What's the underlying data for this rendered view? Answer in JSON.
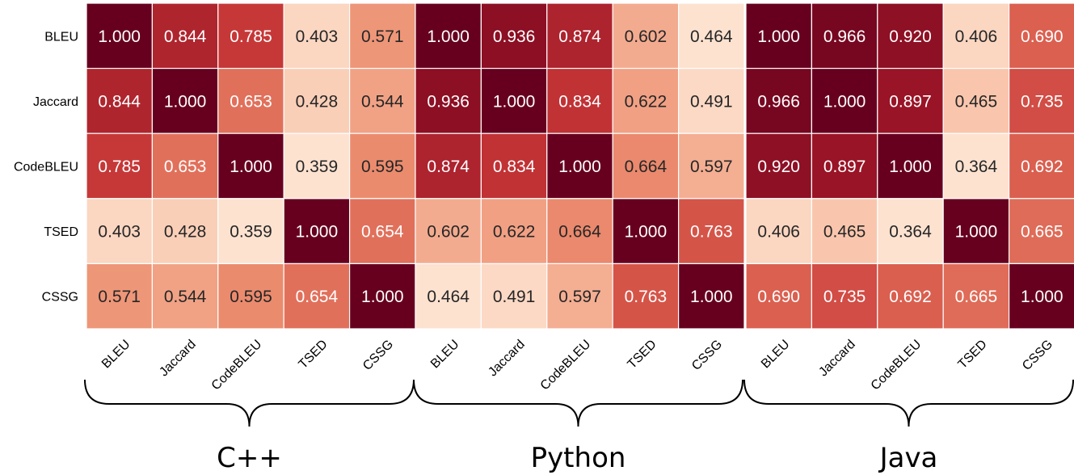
{
  "chart_data": [
    {
      "type": "heatmap",
      "title": "C++",
      "categories": [
        "BLEU",
        "Jaccard",
        "CodeBLEU",
        "TSED",
        "CSSG"
      ],
      "values": [
        [
          1.0,
          0.844,
          0.785,
          0.403,
          0.571
        ],
        [
          0.844,
          1.0,
          0.653,
          0.428,
          0.544
        ],
        [
          0.785,
          0.653,
          1.0,
          0.359,
          0.595
        ],
        [
          0.403,
          0.428,
          0.359,
          1.0,
          0.654
        ],
        [
          0.571,
          0.544,
          0.595,
          0.654,
          1.0
        ]
      ],
      "value_labels": [
        [
          "1.000",
          "0.844",
          "0.785",
          "0.403",
          "0.571"
        ],
        [
          "0.844",
          "1.000",
          "0.653",
          "0.428",
          "0.544"
        ],
        [
          "0.785",
          "0.653",
          "1.000",
          "0.359",
          "0.595"
        ],
        [
          "0.403",
          "0.428",
          "0.359",
          "1.000",
          "0.654"
        ],
        [
          "0.571",
          "0.544",
          "0.595",
          "0.654",
          "1.000"
        ]
      ]
    },
    {
      "type": "heatmap",
      "title": "Python",
      "categories": [
        "BLEU",
        "Jaccard",
        "CodeBLEU",
        "TSED",
        "CSSG"
      ],
      "values": [
        [
          1.0,
          0.936,
          0.874,
          0.602,
          0.464
        ],
        [
          0.936,
          1.0,
          0.834,
          0.622,
          0.491
        ],
        [
          0.874,
          0.834,
          1.0,
          0.664,
          0.597
        ],
        [
          0.602,
          0.622,
          0.664,
          1.0,
          0.763
        ],
        [
          0.464,
          0.491,
          0.597,
          0.763,
          1.0
        ]
      ],
      "value_labels": [
        [
          "1.000",
          "0.936",
          "0.874",
          "0.602",
          "0.464"
        ],
        [
          "0.936",
          "1.000",
          "0.834",
          "0.622",
          "0.491"
        ],
        [
          "0.874",
          "0.834",
          "1.000",
          "0.664",
          "0.597"
        ],
        [
          "0.602",
          "0.622",
          "0.664",
          "1.000",
          "0.763"
        ],
        [
          "0.464",
          "0.491",
          "0.597",
          "0.763",
          "1.000"
        ]
      ]
    },
    {
      "type": "heatmap",
      "title": "Java",
      "categories": [
        "BLEU",
        "Jaccard",
        "CodeBLEU",
        "TSED",
        "CSSG"
      ],
      "values": [
        [
          1.0,
          0.966,
          0.92,
          0.406,
          0.69
        ],
        [
          0.966,
          1.0,
          0.897,
          0.465,
          0.735
        ],
        [
          0.92,
          0.897,
          1.0,
          0.364,
          0.692
        ],
        [
          0.406,
          0.465,
          0.364,
          1.0,
          0.665
        ],
        [
          0.69,
          0.735,
          0.692,
          0.665,
          1.0
        ]
      ],
      "value_labels": [
        [
          "1.000",
          "0.966",
          "0.920",
          "0.406",
          "0.690"
        ],
        [
          "0.966",
          "1.000",
          "0.897",
          "0.465",
          "0.735"
        ],
        [
          "0.920",
          "0.897",
          "1.000",
          "0.364",
          "0.692"
        ],
        [
          "0.406",
          "0.465",
          "0.364",
          "1.000",
          "0.665"
        ],
        [
          "0.690",
          "0.735",
          "0.692",
          "0.665",
          "1.000"
        ]
      ]
    }
  ]
}
